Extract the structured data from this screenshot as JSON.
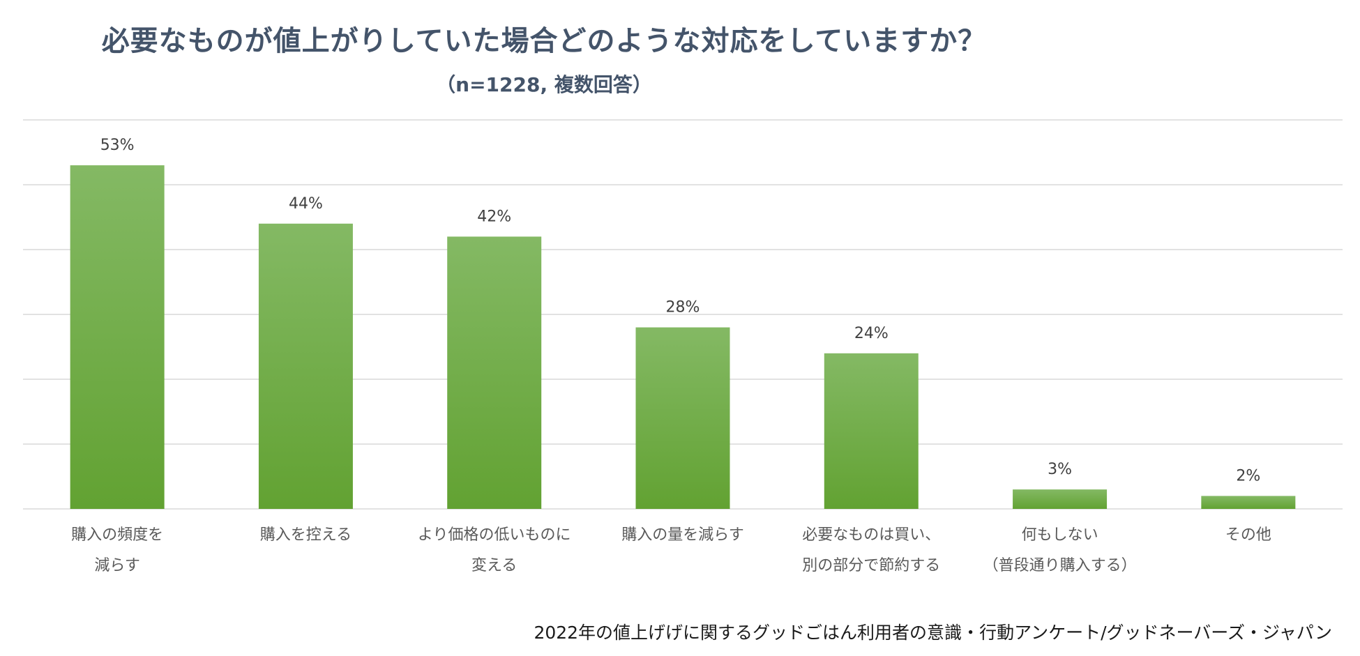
{
  "chart_data": {
    "type": "bar",
    "title": "必要なものが値上がりしていた場合どのような対応をしていますか？",
    "subtitle": "（n=1228, 複数回答）",
    "categories": [
      [
        "購入の頻度を",
        "減らす"
      ],
      [
        "購入を控える"
      ],
      [
        "より価格の低いものに",
        "変える"
      ],
      [
        "購入の量を減らす"
      ],
      [
        "必要なものは買い、",
        "別の部分で節約する"
      ],
      [
        "何もしない",
        "（普段通り購入する）"
      ],
      [
        "その他"
      ]
    ],
    "values": [
      53,
      44,
      42,
      28,
      24,
      3,
      2
    ],
    "data_labels": [
      "53%",
      "44%",
      "42%",
      "28%",
      "24%",
      "3%",
      "2%"
    ],
    "ylim": [
      0,
      60
    ],
    "grid": true,
    "legend": "none",
    "bar_color_top": "#84b964",
    "bar_color_bottom": "#62a232",
    "gridline_color": "#d9d9d9"
  },
  "source": "2022年の値上げげに関するグッドごはん利用者の意識・行動アンケート/グッドネーバーズ・ジャパン"
}
